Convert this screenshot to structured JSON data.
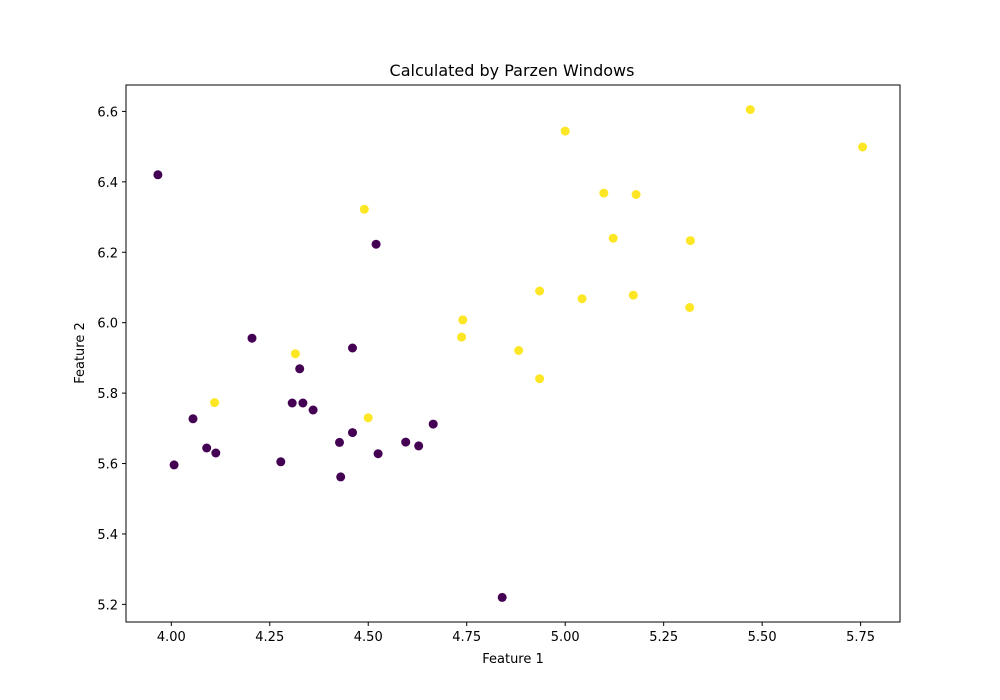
{
  "chart_data": {
    "type": "scatter",
    "title": "Calculated by Parzen Windows",
    "xlabel": "Feature 1",
    "ylabel": "Feature 2",
    "xlim": [
      3.885,
      5.85
    ],
    "ylim": [
      5.15,
      6.675
    ],
    "xticks": [
      4.0,
      4.25,
      4.5,
      4.75,
      5.0,
      5.25,
      5.5,
      5.75
    ],
    "xtick_labels": [
      "4.00",
      "4.25",
      "4.50",
      "4.75",
      "5.00",
      "5.25",
      "5.50",
      "5.75"
    ],
    "yticks": [
      5.2,
      5.4,
      5.6,
      5.8,
      6.0,
      6.2,
      6.4,
      6.6
    ],
    "ytick_labels": [
      "5.2",
      "5.4",
      "5.6",
      "5.8",
      "6.0",
      "6.2",
      "6.4",
      "6.6"
    ],
    "grid": false,
    "colors": {
      "class_0": "#440154",
      "class_1": "#fde725"
    },
    "series": [
      {
        "class": 0,
        "color": "#440154",
        "points": [
          [
            3.966,
            6.42
          ],
          [
            4.007,
            5.596
          ],
          [
            4.055,
            5.727
          ],
          [
            4.09,
            5.644
          ],
          [
            4.113,
            5.63
          ],
          [
            4.205,
            5.956
          ],
          [
            4.278,
            5.605
          ],
          [
            4.307,
            5.772
          ],
          [
            4.326,
            5.869
          ],
          [
            4.334,
            5.772
          ],
          [
            4.36,
            5.752
          ],
          [
            4.427,
            5.66
          ],
          [
            4.43,
            5.562
          ],
          [
            4.46,
            5.928
          ],
          [
            4.46,
            5.688
          ],
          [
            4.52,
            6.223
          ],
          [
            4.525,
            5.628
          ],
          [
            4.595,
            5.661
          ],
          [
            4.628,
            5.65
          ],
          [
            4.665,
            5.712
          ],
          [
            4.84,
            5.22
          ]
        ]
      },
      {
        "class": 1,
        "color": "#fde725",
        "points": [
          [
            4.11,
            5.773
          ],
          [
            4.315,
            5.912
          ],
          [
            4.49,
            6.322
          ],
          [
            4.5,
            5.73
          ],
          [
            4.737,
            5.959
          ],
          [
            4.74,
            6.008
          ],
          [
            4.882,
            5.921
          ],
          [
            4.935,
            5.841
          ],
          [
            4.935,
            6.09
          ],
          [
            5.0,
            6.544
          ],
          [
            5.043,
            6.068
          ],
          [
            5.098,
            6.368
          ],
          [
            5.122,
            6.24
          ],
          [
            5.173,
            6.078
          ],
          [
            5.18,
            6.364
          ],
          [
            5.316,
            6.043
          ],
          [
            5.318,
            6.233
          ],
          [
            5.47,
            6.605
          ],
          [
            5.755,
            6.499
          ]
        ]
      }
    ]
  }
}
